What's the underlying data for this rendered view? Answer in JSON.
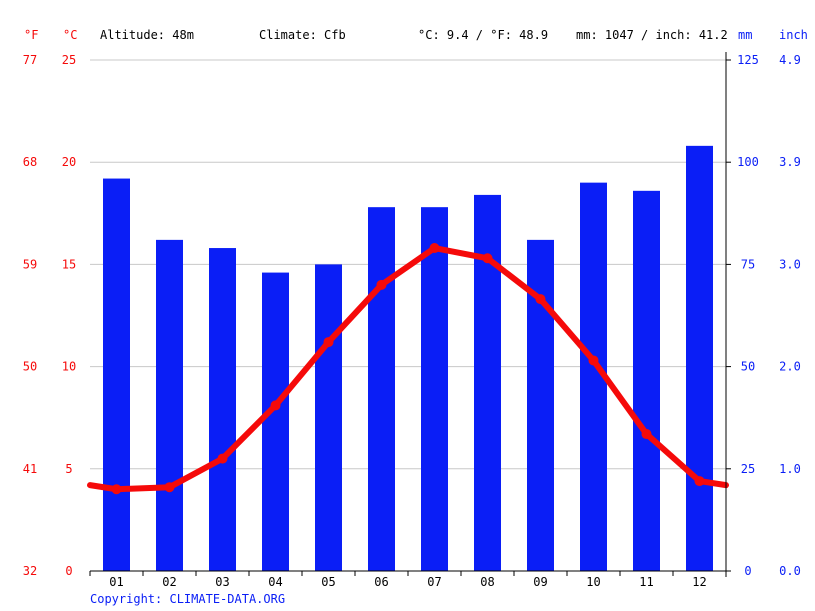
{
  "header": {
    "unit_f": "°F",
    "unit_c": "°C",
    "altitude": "Altitude: 48m",
    "climate": "Climate: Cfb",
    "temp_avg": "°C: 9.4 / °F: 48.9",
    "precip_total": "mm: 1047 / inch: 41.2",
    "unit_mm": "mm",
    "unit_inch": "inch"
  },
  "footer": {
    "copyright": "Copyright: CLIMATE-DATA.ORG"
  },
  "colors": {
    "temperature": "#f50a0a",
    "precipitation": "#0a1ef6",
    "grid": "#c8c8c8"
  },
  "chart_data": {
    "type": "bar",
    "categories": [
      "01",
      "02",
      "03",
      "04",
      "05",
      "06",
      "07",
      "08",
      "09",
      "10",
      "11",
      "12"
    ],
    "series": [
      {
        "values": [
          96,
          81,
          79,
          73,
          75,
          89,
          89,
          92,
          81,
          95,
          93,
          104
        ],
        "type": "bar",
        "axis": "right",
        "unit": "mm"
      },
      {
        "values": [
          4.0,
          4.1,
          5.5,
          8.1,
          11.2,
          14.0,
          15.8,
          15.3,
          13.3,
          10.3,
          6.7,
          4.4
        ],
        "type": "line",
        "axis": "left",
        "unit": "°C"
      }
    ],
    "axes": {
      "left_c": {
        "ticks": [
          0,
          5,
          10,
          15,
          20,
          25
        ],
        "ylim": [
          0,
          25
        ]
      },
      "left_f": {
        "ticks": [
          32,
          41,
          50,
          59,
          68,
          77
        ]
      },
      "right_mm": {
        "ticks": [
          0,
          25,
          50,
          75,
          100,
          125
        ],
        "ylim": [
          0,
          125
        ]
      },
      "right_inch": {
        "ticks": [
          "0.0",
          "1.0",
          "2.0",
          "3.0",
          "3.9",
          "4.9"
        ]
      }
    },
    "grid": true
  }
}
